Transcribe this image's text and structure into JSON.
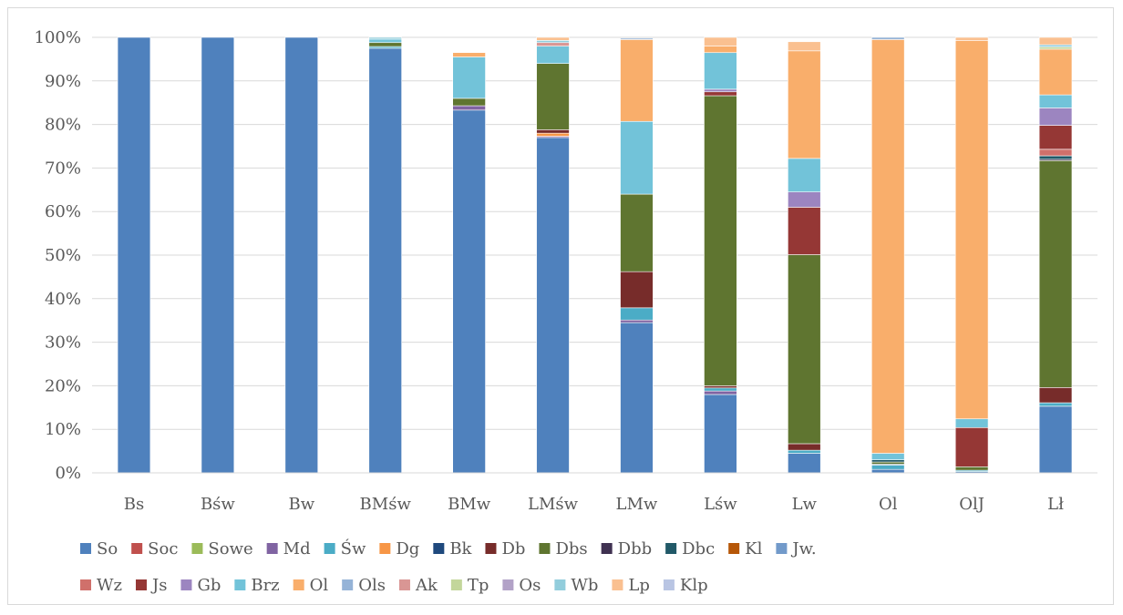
{
  "chart_data": {
    "type": "bar",
    "stacked": true,
    "percent": true,
    "title": "",
    "xlabel": "",
    "ylabel": "",
    "ylim": [
      0,
      100
    ],
    "y_ticks": [
      "0%",
      "10%",
      "20%",
      "30%",
      "40%",
      "50%",
      "60%",
      "70%",
      "80%",
      "90%",
      "100%"
    ],
    "grid": true,
    "legend_position": "bottom",
    "categories": [
      "Bs",
      "Bśw",
      "Bw",
      "BMśw",
      "BMw",
      "LMśw",
      "LMw",
      "Lśw",
      "Lw",
      "Ol",
      "OlJ",
      "Lł"
    ],
    "series": [
      {
        "name": "So",
        "color": "#4f81bd",
        "values": [
          100,
          100,
          100,
          97.5,
          83.3,
          77.0,
          34.5,
          18.0,
          4.5,
          0.8,
          0.3,
          15.3
        ]
      },
      {
        "name": "Soc",
        "color": "#c0504d",
        "values": [
          0,
          0,
          0,
          0,
          0,
          0,
          0,
          0,
          0,
          0,
          0,
          0
        ]
      },
      {
        "name": "Sowe",
        "color": "#9bbb59",
        "values": [
          0,
          0,
          0,
          0,
          0,
          0,
          0,
          0,
          0,
          0,
          0,
          0
        ]
      },
      {
        "name": "Md",
        "color": "#8064a2",
        "values": [
          0,
          0,
          0,
          0,
          1.0,
          0.3,
          0.6,
          0.8,
          0,
          0,
          0,
          0
        ]
      },
      {
        "name": "Św",
        "color": "#4bacc6",
        "values": [
          0,
          0,
          0,
          0.4,
          0,
          0,
          2.8,
          0.7,
          0.7,
          1.0,
          0.3,
          0.8
        ]
      },
      {
        "name": "Dg",
        "color": "#f79646",
        "values": [
          0,
          0,
          0,
          0,
          0,
          0.7,
          0,
          0,
          0,
          0,
          0,
          0
        ]
      },
      {
        "name": "Bk",
        "color": "#1f497d",
        "values": [
          0,
          0,
          0,
          0,
          0,
          0,
          0,
          0,
          0,
          0.2,
          0,
          0
        ]
      },
      {
        "name": "Db",
        "color": "#772c2a",
        "values": [
          0,
          0,
          0,
          0,
          0,
          0.8,
          8.3,
          0.5,
          1.5,
          0,
          0,
          3.5
        ]
      },
      {
        "name": "Dbs",
        "color": "#5f7530",
        "values": [
          0,
          0,
          0,
          0.9,
          1.7,
          15.2,
          17.8,
          66.6,
          43.4,
          0.5,
          0.8,
          52.1
        ]
      },
      {
        "name": "Dbb",
        "color": "#3f3151",
        "values": [
          0,
          0,
          0,
          0,
          0,
          0,
          0,
          0,
          0,
          0,
          0,
          0.3
        ]
      },
      {
        "name": "Dbc",
        "color": "#215968",
        "values": [
          0,
          0,
          0,
          0,
          0,
          0,
          0,
          0,
          0,
          0.5,
          0,
          0.8
        ]
      },
      {
        "name": "Kl",
        "color": "#b65708",
        "values": [
          0,
          0,
          0,
          0,
          0,
          0,
          0,
          0,
          0,
          0,
          0,
          0
        ]
      },
      {
        "name": "Jw.",
        "color": "#729aca",
        "values": [
          0,
          0,
          0,
          0,
          0,
          0,
          0,
          0,
          0,
          0,
          0,
          0
        ]
      },
      {
        "name": "Wz",
        "color": "#d0706b",
        "values": [
          0,
          0,
          0,
          0,
          0,
          0,
          0,
          0,
          0,
          0,
          0,
          1.5
        ]
      },
      {
        "name": "Js",
        "color": "#953735",
        "values": [
          0,
          0,
          0,
          0,
          0,
          0,
          0,
          0.9,
          10.9,
          0,
          9.0,
          5.5
        ]
      },
      {
        "name": "Gb",
        "color": "#9c85c0",
        "values": [
          0,
          0,
          0,
          0,
          0,
          0,
          0,
          0.6,
          3.5,
          0,
          0,
          4.0
        ]
      },
      {
        "name": "Brz",
        "color": "#72c3d9",
        "values": [
          0,
          0,
          0,
          0.8,
          9.5,
          4.0,
          16.7,
          8.4,
          7.7,
          1.5,
          2.0,
          3.0
        ]
      },
      {
        "name": "Ol",
        "color": "#f9ae6b",
        "values": [
          0,
          0,
          0,
          0,
          1.0,
          0,
          18.8,
          1.5,
          24.7,
          95.0,
          86.9,
          10.5
        ]
      },
      {
        "name": "Ols",
        "color": "#95b3d7",
        "values": [
          0,
          0,
          0,
          0,
          0,
          0,
          0.3,
          0,
          0,
          0.5,
          0,
          0
        ]
      },
      {
        "name": "Ak",
        "color": "#d99694",
        "values": [
          0,
          0,
          0,
          0,
          0,
          0.8,
          0,
          0,
          0,
          0,
          0,
          0
        ]
      },
      {
        "name": "Tp",
        "color": "#c3d69b",
        "values": [
          0,
          0,
          0,
          0,
          0,
          0,
          0,
          0,
          0,
          0,
          0,
          0.5
        ]
      },
      {
        "name": "Os",
        "color": "#b2a2c7",
        "values": [
          0,
          0,
          0,
          0,
          0,
          0,
          0,
          0,
          0,
          0,
          0,
          0
        ]
      },
      {
        "name": "Wb",
        "color": "#92cddc",
        "values": [
          0,
          0,
          0,
          0.4,
          0,
          0.5,
          0,
          0,
          0,
          0,
          0,
          0.5
        ]
      },
      {
        "name": "Lp",
        "color": "#fac090",
        "values": [
          0,
          0,
          0,
          0,
          0,
          0.7,
          0,
          2.0,
          2.1,
          0,
          0.7,
          1.7
        ]
      },
      {
        "name": "Klp",
        "color": "#b9c5e3",
        "values": [
          0,
          0,
          0,
          0,
          0,
          0,
          0,
          0,
          0,
          0,
          0,
          0
        ]
      }
    ]
  }
}
